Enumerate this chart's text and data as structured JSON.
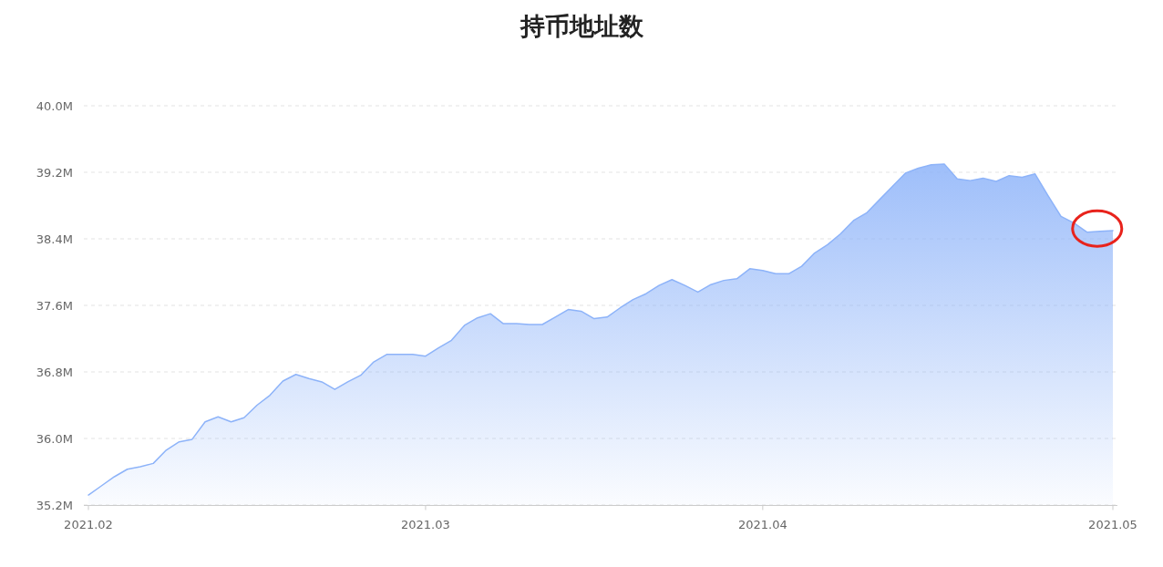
{
  "chart_data": {
    "type": "area",
    "title": "持币地址数",
    "categories": [
      "2021.02",
      null,
      null,
      null,
      null,
      null,
      null,
      null,
      null,
      null,
      null,
      null,
      null,
      null,
      null,
      null,
      null,
      null,
      null,
      null,
      null,
      null,
      null,
      null,
      null,
      null,
      "2021.03",
      null,
      null,
      null,
      null,
      null,
      null,
      null,
      null,
      null,
      null,
      null,
      null,
      null,
      null,
      null,
      null,
      null,
      null,
      null,
      null,
      null,
      null,
      null,
      null,
      null,
      "2021.04",
      null,
      null,
      null,
      null,
      null,
      null,
      null,
      null,
      null,
      null,
      null,
      null,
      null,
      null,
      null,
      null,
      null,
      null,
      null,
      null,
      null,
      null,
      null,
      null,
      null,
      null,
      "2021.05"
    ],
    "series": [
      {
        "color": "#8db3f9",
        "values": [
          35.32,
          35.43,
          35.54,
          35.63,
          35.66,
          35.7,
          35.86,
          35.96,
          35.99,
          36.2,
          36.26,
          36.2,
          36.25,
          36.4,
          36.52,
          36.69,
          36.77,
          36.72,
          36.68,
          36.59,
          36.68,
          36.76,
          36.92,
          37.01,
          37.01,
          37.01,
          36.99,
          37.09,
          37.18,
          37.36,
          37.45,
          37.5,
          37.38,
          37.38,
          37.37,
          37.37,
          37.46,
          37.55,
          37.53,
          37.44,
          37.46,
          37.57,
          37.67,
          37.74,
          37.84,
          37.91,
          37.84,
          37.76,
          37.85,
          37.9,
          37.92,
          38.04,
          38.02,
          37.98,
          37.98,
          38.07,
          38.23,
          38.33,
          38.46,
          38.62,
          38.71,
          38.87,
          39.03,
          39.19,
          39.25,
          39.29,
          39.3,
          39.12,
          39.1,
          39.13,
          39.09,
          39.16,
          39.14,
          39.18,
          38.92,
          38.67,
          38.59,
          38.48,
          38.49,
          38.5
        ]
      }
    ],
    "ylim": [
      35.2,
      40.0
    ],
    "yticks": [
      {
        "value": 35.2,
        "label": "35.2M"
      },
      {
        "value": 36.0,
        "label": "36.0M"
      },
      {
        "value": 36.8,
        "label": "36.8M"
      },
      {
        "value": 37.6,
        "label": "37.6M"
      },
      {
        "value": 38.4,
        "label": "38.4M"
      },
      {
        "value": 39.2,
        "label": "39.2M"
      },
      {
        "value": 40.0,
        "label": "40.0M"
      }
    ],
    "grid": "y"
  }
}
